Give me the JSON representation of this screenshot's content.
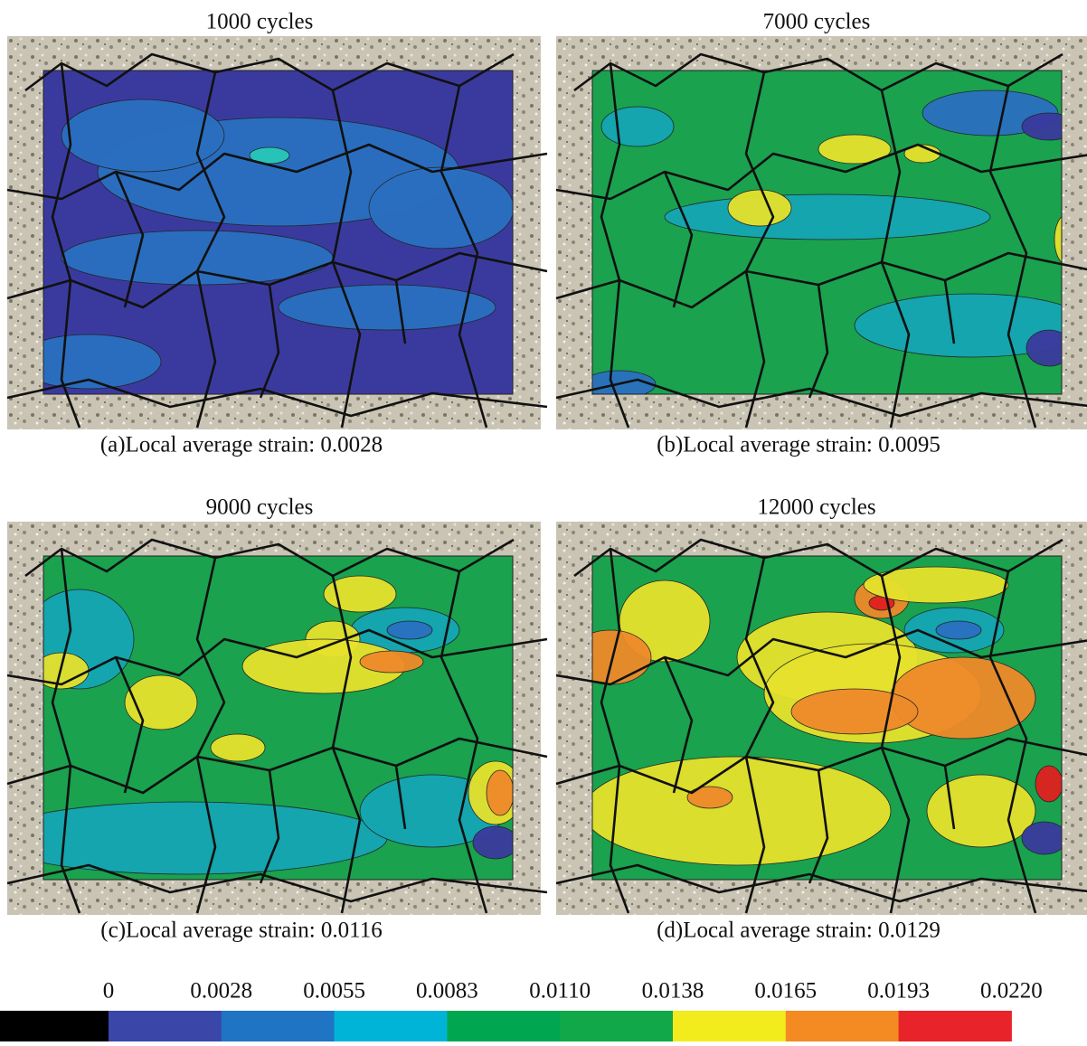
{
  "panels": [
    {
      "title": "1000 cycles",
      "caption": "(a)Local average strain: 0.0028"
    },
    {
      "title": "7000 cycles",
      "caption": "(b)Local average strain: 0.0095"
    },
    {
      "title": "9000 cycles",
      "caption": "(c)Local average strain: 0.0116"
    },
    {
      "title": "12000 cycles",
      "caption": "(d)Local average strain: 0.0129"
    }
  ],
  "colorbar": {
    "ticks": [
      "0",
      "0.0028",
      "0.0055",
      "0.0083",
      "0.0110",
      "0.0138",
      "0.0165",
      "0.0193",
      "0.0220"
    ],
    "underflow_color": "#000000",
    "colors": [
      "#3a46a8",
      "#1f74c4",
      "#00b4d8",
      "#00a650",
      "#10a848",
      "#f2ec1c",
      "#f38a22",
      "#e8242a"
    ]
  }
}
